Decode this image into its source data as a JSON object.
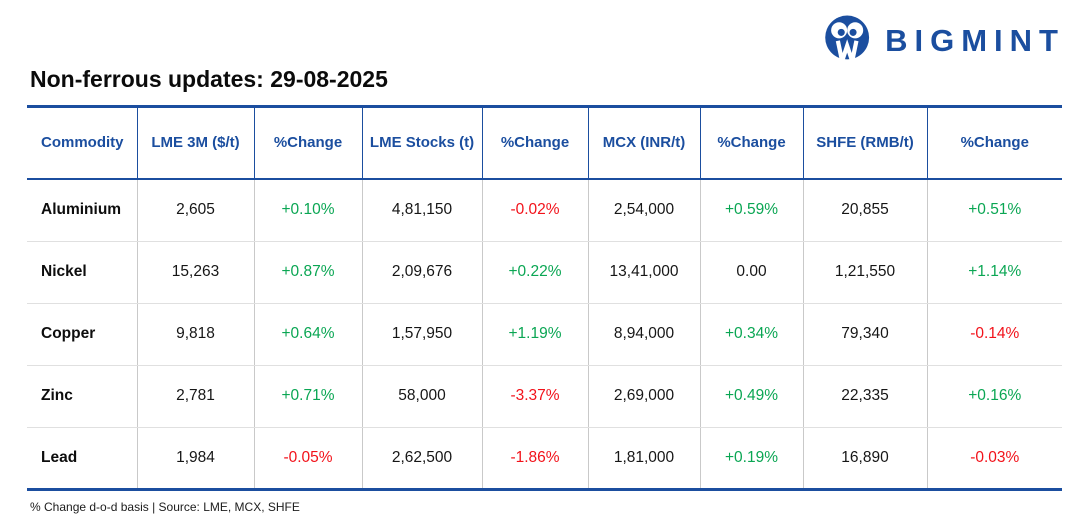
{
  "colors": {
    "brand_blue": "#1b4e9f",
    "positive_green": "#0aa653",
    "negative_red": "#f2121a"
  },
  "brand": {
    "logo_text": "BIGMINT",
    "logo_icon": "owl-circle-icon"
  },
  "title": "Non-ferrous updates: 29-08-2025",
  "table": {
    "headers": [
      "Commodity",
      "LME 3M ($/t)",
      "%Change",
      "LME Stocks (t)",
      "%Change",
      "MCX (INR/t)",
      "%Change",
      "SHFE (RMB/t)",
      "%Change"
    ],
    "rows": [
      {
        "commodity": "Aluminium",
        "values": [
          "2,605",
          "+0.10%",
          "4,81,150",
          "-0.02%",
          "2,54,000",
          "+0.59%",
          "20,855",
          "+0.51%"
        ]
      },
      {
        "commodity": "Nickel",
        "values": [
          "15,263",
          "+0.87%",
          "2,09,676",
          "+0.22%",
          "13,41,000",
          "0.00",
          "1,21,550",
          "+1.14%"
        ]
      },
      {
        "commodity": "Copper",
        "values": [
          "9,818",
          "+0.64%",
          "1,57,950",
          "+1.19%",
          "8,94,000",
          "+0.34%",
          "79,340",
          "-0.14%"
        ]
      },
      {
        "commodity": "Zinc",
        "values": [
          "2,781",
          "+0.71%",
          "58,000",
          "-3.37%",
          "2,69,000",
          "+0.49%",
          "22,335",
          "+0.16%"
        ]
      },
      {
        "commodity": "Lead",
        "values": [
          "1,984",
          "-0.05%",
          "2,62,500",
          "-1.86%",
          "1,81,000",
          "+0.19%",
          "16,890",
          "-0.03%"
        ]
      }
    ]
  },
  "footnote": "% Change d-o-d basis | Source: LME, MCX, SHFE",
  "chart_data": {
    "type": "table",
    "title": "Non-ferrous updates: 29-08-2025",
    "columns": [
      "Commodity",
      "LME 3M ($/t)",
      "%Change",
      "LME Stocks (t)",
      "%Change",
      "MCX (INR/t)",
      "%Change",
      "SHFE (RMB/t)",
      "%Change"
    ],
    "rows": [
      [
        "Aluminium",
        "2,605",
        "+0.10%",
        "4,81,150",
        "-0.02%",
        "2,54,000",
        "+0.59%",
        "20,855",
        "+0.51%"
      ],
      [
        "Nickel",
        "15,263",
        "+0.87%",
        "2,09,676",
        "+0.22%",
        "13,41,000",
        "0.00",
        "1,21,550",
        "+1.14%"
      ],
      [
        "Copper",
        "9,818",
        "+0.64%",
        "1,57,950",
        "+1.19%",
        "8,94,000",
        "+0.34%",
        "79,340",
        "-0.14%"
      ],
      [
        "Zinc",
        "2,781",
        "+0.71%",
        "58,000",
        "-3.37%",
        "2,69,000",
        "+0.49%",
        "22,335",
        "+0.16%"
      ],
      [
        "Lead",
        "1,984",
        "-0.05%",
        "2,62,500",
        "-1.86%",
        "1,81,000",
        "+0.19%",
        "16,890",
        "-0.03%"
      ]
    ],
    "notes": "% Change d-o-d basis | Source: LME, MCX, SHFE; positive %Change rendered green, negative red, 0.00 black"
  }
}
